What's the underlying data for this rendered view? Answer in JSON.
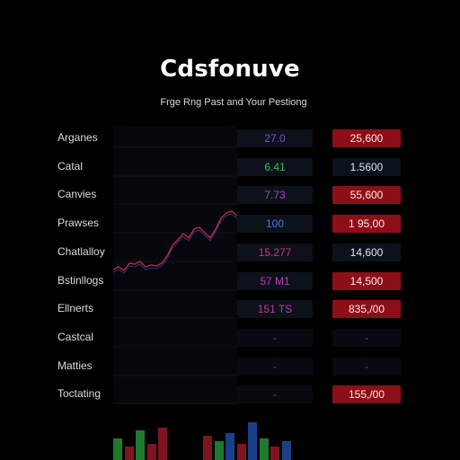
{
  "header": {
    "title": "Cdsfonuve",
    "subtitle": "Frge Rng Past and Your Pestiong"
  },
  "rows": [
    {
      "label": "Arganes",
      "value_a": "27.0",
      "color_a": "#7b4ae0",
      "value_b": "25,600",
      "b_red": true
    },
    {
      "label": "Catal",
      "value_a": "6.41",
      "color_a": "#2fbf4f",
      "value_b": "1.5600",
      "b_red": false
    },
    {
      "label": "Canvies",
      "value_a": "7.73",
      "color_a": "#b03ad0",
      "value_b": "55,600",
      "b_red": true
    },
    {
      "label": "Prawses",
      "value_a": "100",
      "color_a": "#3f7de8",
      "value_b": "1 95,00",
      "b_red": true
    },
    {
      "label": "Chatlalloy",
      "value_a": "15.277",
      "color_a": "#d42d8a",
      "value_b": "14,600",
      "b_red": false
    },
    {
      "label": "Bstinllogs",
      "value_a": "57 M1",
      "color_a": "#c03ab8",
      "value_b": "14,500",
      "b_red": true
    },
    {
      "label": "Ellnerts",
      "value_a": "151 TS",
      "color_a": "#c0399f",
      "value_b": "835,/00",
      "b_red": true
    },
    {
      "label": "Castcal",
      "value_a": "-",
      "color_a": "#c0283a",
      "value_b": "-",
      "b_red": false
    },
    {
      "label": "Matties",
      "value_a": "-",
      "color_a": "#c0283a",
      "value_b": "-",
      "b_red": false
    },
    {
      "label": "Toctating",
      "value_a": "-",
      "color_a": "#c0283a",
      "value_b": "155,/00",
      "b_red": true
    }
  ],
  "colors": {
    "line": "#c0283a",
    "line_alt": "#3a5bd8",
    "bar_green": "#1f7a2e",
    "bar_red": "#7d1420",
    "bar_blue": "#1c3f8a"
  },
  "sparkline": {
    "points": [
      0.15,
      0.18,
      0.14,
      0.22,
      0.21,
      0.24,
      0.18,
      0.2,
      0.19,
      0.22,
      0.3,
      0.42,
      0.48,
      0.55,
      0.5,
      0.6,
      0.62,
      0.56,
      0.5,
      0.6,
      0.72,
      0.78,
      0.8,
      0.75
    ]
  },
  "bars": {
    "values": [
      0.4,
      0.25,
      0.55,
      0.3,
      0.6,
      0.0,
      0.0,
      0.0,
      0.45,
      0.35,
      0.5,
      0.3,
      0.7,
      0.4,
      0.25,
      0.35
    ],
    "colors": [
      "bar_green",
      "bar_red",
      "bar_green",
      "bar_red",
      "bar_red",
      "bar_red",
      "bar_red",
      "bar_red",
      "bar_red",
      "bar_green",
      "bar_blue",
      "bar_red",
      "bar_blue",
      "bar_green",
      "bar_red",
      "bar_blue"
    ]
  }
}
